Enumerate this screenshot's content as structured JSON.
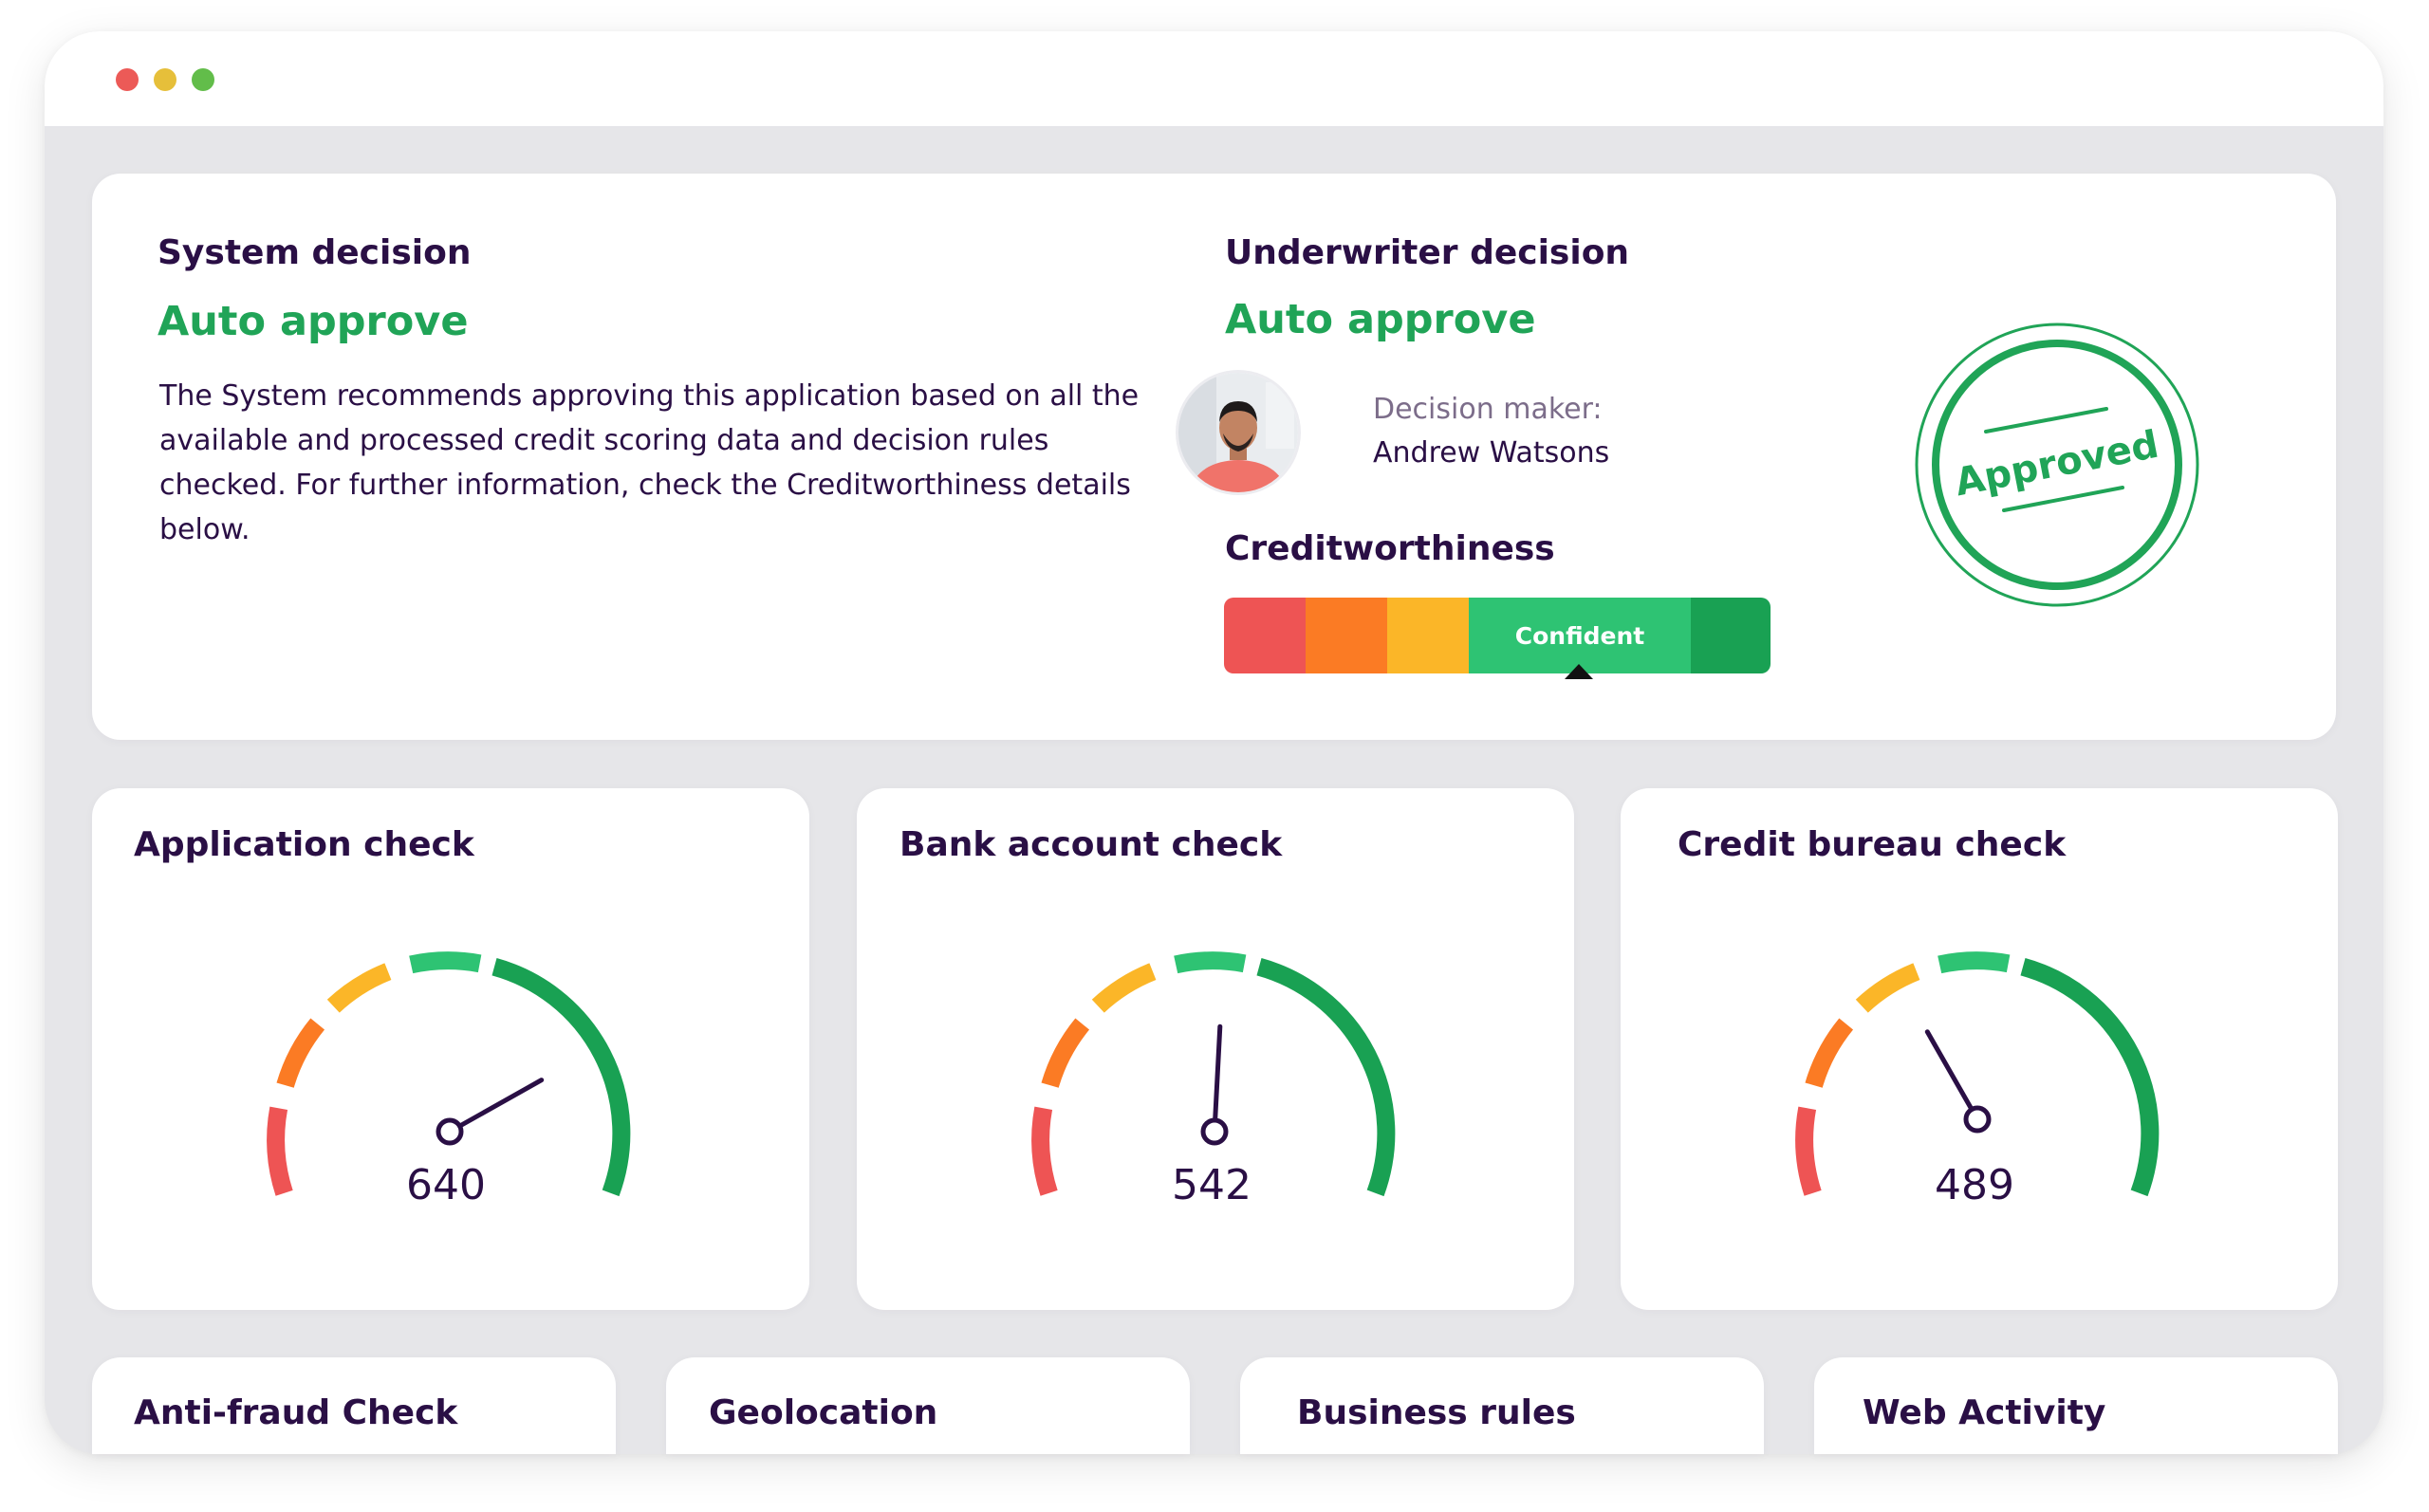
{
  "window": {
    "traffic_lights": [
      "close",
      "minimize",
      "maximize"
    ],
    "colors": {
      "close": "#ec5a57",
      "minimize": "#e6bf3a",
      "maximize": "#62bd4a"
    }
  },
  "decision_card": {
    "system": {
      "heading": "System decision",
      "status": "Auto approve",
      "description": "The System recommends approving this application based on all the available and processed credit scoring data and decision rules checked. For further information, check the Creditworthiness details below."
    },
    "underwriter": {
      "heading": "Underwriter decision",
      "status": "Auto approve",
      "decision_maker_label": "Decision maker:",
      "decision_maker_name": "Andrew Watsons",
      "avatar_icon": "person-avatar"
    },
    "creditworthiness": {
      "heading": "Creditworthiness",
      "selected_label": "Confident",
      "segments": [
        "#ee5454",
        "#fb7b24",
        "#fbb628",
        "#2ec373",
        "#19a153"
      ],
      "selected_segment_index": 3
    },
    "stamp": {
      "text": "Approved",
      "color": "#20a457"
    }
  },
  "checks": [
    {
      "title": "Application check",
      "value": "640"
    },
    {
      "title": "Bank account check",
      "value": "542"
    },
    {
      "title": "Credit bureau check",
      "value": "489"
    }
  ],
  "bottom_cards": [
    {
      "title": "Anti-fraud Check"
    },
    {
      "title": "Geolocation"
    },
    {
      "title": "Business rules"
    },
    {
      "title": "Web Activity"
    }
  ],
  "colors": {
    "accent_green": "#20a457",
    "text_dark": "#2a0f45",
    "gauge_red": "#ee5454",
    "gauge_orange": "#fb7b24",
    "gauge_yellow": "#fbb628",
    "gauge_light_green": "#2ec373",
    "gauge_green": "#19a153"
  }
}
